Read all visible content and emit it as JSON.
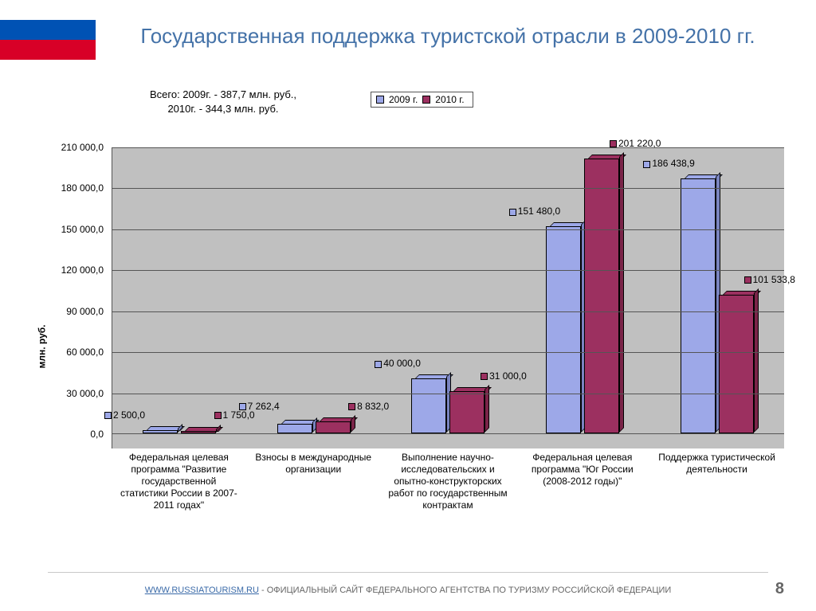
{
  "title": "Государственная поддержка туристской отрасли в 2009-2010 гг.",
  "subtitle_line1": "Всего: 2009г. - 387,7 млн. руб.,",
  "subtitle_line2": "2010г. - 344,3 млн. руб.",
  "legend": {
    "series1": "2009 г.",
    "series2": "2010 г.",
    "color1": "#9da8e8",
    "color1_dark": "#7a84c0",
    "color2": "#9c3060",
    "color2_dark": "#7a2448"
  },
  "chart": {
    "type": "bar",
    "y_label": "млн. руб.",
    "ylim_max": 210000,
    "y_ticks": [
      "0,0",
      "30 000,0",
      "60 000,0",
      "90 000,0",
      "120 000,0",
      "150 000,0",
      "180 000,0",
      "210 000,0"
    ],
    "plot_bg": "#c0c0c0",
    "grid_color": "#555555",
    "categories": [
      "Федеральная целевая программа \"Развитие государственной статистики России в 2007-2011 годах\"",
      "Взносы в международные организации",
      "Выполнение научно-исследовательских и опытно-конструкторских работ по государственным контрактам",
      "Федеральная целевая программа \"Юг России (2008-2012 годы)\"",
      "Поддержка туристической деятельности"
    ],
    "series1_values": [
      2500.0,
      7262.4,
      40000.0,
      151480.0,
      186438.9
    ],
    "series2_values": [
      1750.0,
      8832.0,
      31000.0,
      201220.0,
      101533.8
    ],
    "series1_labels": [
      "2 500,0",
      "7 262,4",
      "40 000,0",
      "151 480,0",
      "186 438,9"
    ],
    "series2_labels": [
      "1 750,0",
      "8 832,0",
      "31 000,0",
      "201 220,0",
      "101 533,8"
    ]
  },
  "footer": {
    "link_text": "WWW.RUSSIATOURISM.RU",
    "text": " - ОФИЦИАЛЬНЫЙ САЙТ ФЕДЕРАЛЬНОГО АГЕНТСТВА ПО ТУРИЗМУ РОССИЙСКОЙ ФЕДЕРАЦИИ"
  },
  "page_number": "8"
}
